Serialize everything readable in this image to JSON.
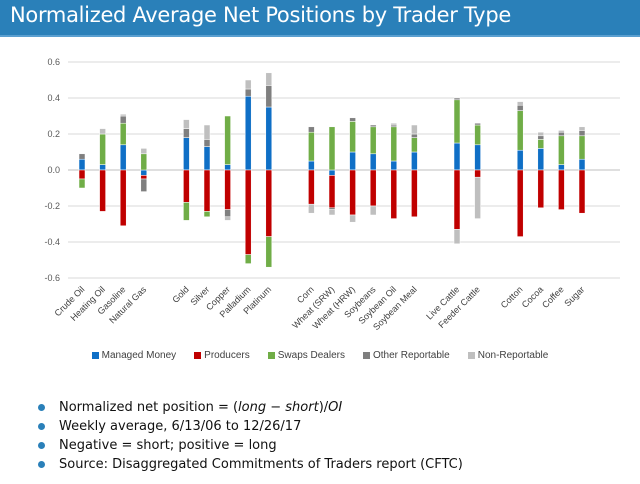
{
  "header": {
    "title": "Normalized Average Net Positions by Trader Type"
  },
  "chart_data": {
    "type": "bar",
    "stacked": true,
    "title": "",
    "xlabel": "",
    "ylabel": "",
    "ylim": [
      -0.6,
      0.6
    ],
    "yticks": [
      0.6,
      0.4,
      0.2,
      0.0,
      -0.2,
      -0.4,
      -0.6
    ],
    "ytick_labels": [
      "0.6",
      "0.4",
      "0.2",
      "0.0",
      "-0.2",
      "-0.4",
      "-0.6"
    ],
    "grid": true,
    "legend_position": "bottom",
    "groups": [
      [
        "Crude Oil",
        "Heating Oil",
        "Gasoline",
        "Natural Gas"
      ],
      [
        "Gold",
        "Silver",
        "Copper",
        "Palladium",
        "Platinum"
      ],
      [
        "Corn",
        "Wheat (SRW)",
        "Wheat (HRW)",
        "Soybeans",
        "Soybean Oil",
        "Soybean Meal"
      ],
      [
        "Live Cattle",
        "Feeder Cattle"
      ],
      [
        "Cotton",
        "Cocoa",
        "Coffee",
        "Sugar"
      ]
    ],
    "categories": [
      "Crude Oil",
      "Heating Oil",
      "Gasoline",
      "Natural Gas",
      "Gold",
      "Silver",
      "Copper",
      "Palladium",
      "Platinum",
      "Corn",
      "Wheat (SRW)",
      "Wheat (HRW)",
      "Soybeans",
      "Soybean Oil",
      "Soybean Meal",
      "Live Cattle",
      "Feeder Cattle",
      "Cotton",
      "Cocoa",
      "Coffee",
      "Sugar"
    ],
    "series": [
      {
        "name": "Managed Money",
        "color": "#0f6fc6",
        "values": [
          0.06,
          0.03,
          0.14,
          -0.03,
          0.18,
          0.13,
          0.03,
          0.41,
          0.35,
          0.05,
          -0.03,
          0.1,
          0.09,
          0.05,
          0.1,
          0.15,
          0.14,
          0.11,
          0.12,
          0.03,
          0.06
        ]
      },
      {
        "name": "Producers",
        "color": "#c00000",
        "values": [
          -0.05,
          -0.23,
          -0.31,
          -0.02,
          -0.18,
          -0.23,
          -0.22,
          -0.47,
          -0.37,
          -0.19,
          -0.18,
          -0.25,
          -0.2,
          -0.27,
          -0.26,
          -0.33,
          -0.04,
          -0.37,
          -0.21,
          -0.22,
          -0.24
        ]
      },
      {
        "name": "Swaps Dealers",
        "color": "#70ad47",
        "values": [
          -0.05,
          0.17,
          0.12,
          0.09,
          -0.1,
          -0.03,
          0.27,
          -0.05,
          -0.17,
          0.16,
          0.24,
          0.17,
          0.15,
          0.19,
          0.08,
          0.24,
          0.11,
          0.22,
          0.05,
          0.16,
          0.13
        ]
      },
      {
        "name": "Other Reportable",
        "color": "#7f7f7f",
        "values": [
          0.03,
          0.0,
          0.04,
          -0.07,
          0.05,
          0.04,
          -0.04,
          0.04,
          0.12,
          0.03,
          -0.01,
          0.02,
          0.01,
          0.01,
          0.02,
          0.01,
          0.01,
          0.03,
          0.02,
          0.02,
          0.03
        ]
      },
      {
        "name": "Non-Reportable",
        "color": "#bfbfbf",
        "values": [
          0.0,
          0.03,
          0.01,
          0.03,
          0.05,
          0.08,
          -0.02,
          0.05,
          0.07,
          -0.05,
          -0.03,
          -0.04,
          -0.05,
          0.01,
          0.05,
          -0.08,
          -0.23,
          0.02,
          0.02,
          0.01,
          0.02
        ]
      }
    ]
  },
  "legend": [
    {
      "label": "Managed Money",
      "color": "#0f6fc6"
    },
    {
      "label": "Producers",
      "color": "#c00000"
    },
    {
      "label": "Swaps Dealers",
      "color": "#70ad47"
    },
    {
      "label": "Other Reportable",
      "color": "#7f7f7f"
    },
    {
      "label": "Non-Reportable",
      "color": "#bfbfbf"
    }
  ],
  "bullets": {
    "b1_prefix": "Normalized net position = (",
    "b1_long": "long",
    "b1_minus": " − ",
    "b1_short": "short",
    "b1_mid": ")/",
    "b1_oi": "OI",
    "b2": "Weekly average, 6/13/06 to 12/26/17",
    "b3": "Negative = short; positive = long",
    "b4": "Source: Disaggregated Commitments of Traders report (CFTC)"
  }
}
